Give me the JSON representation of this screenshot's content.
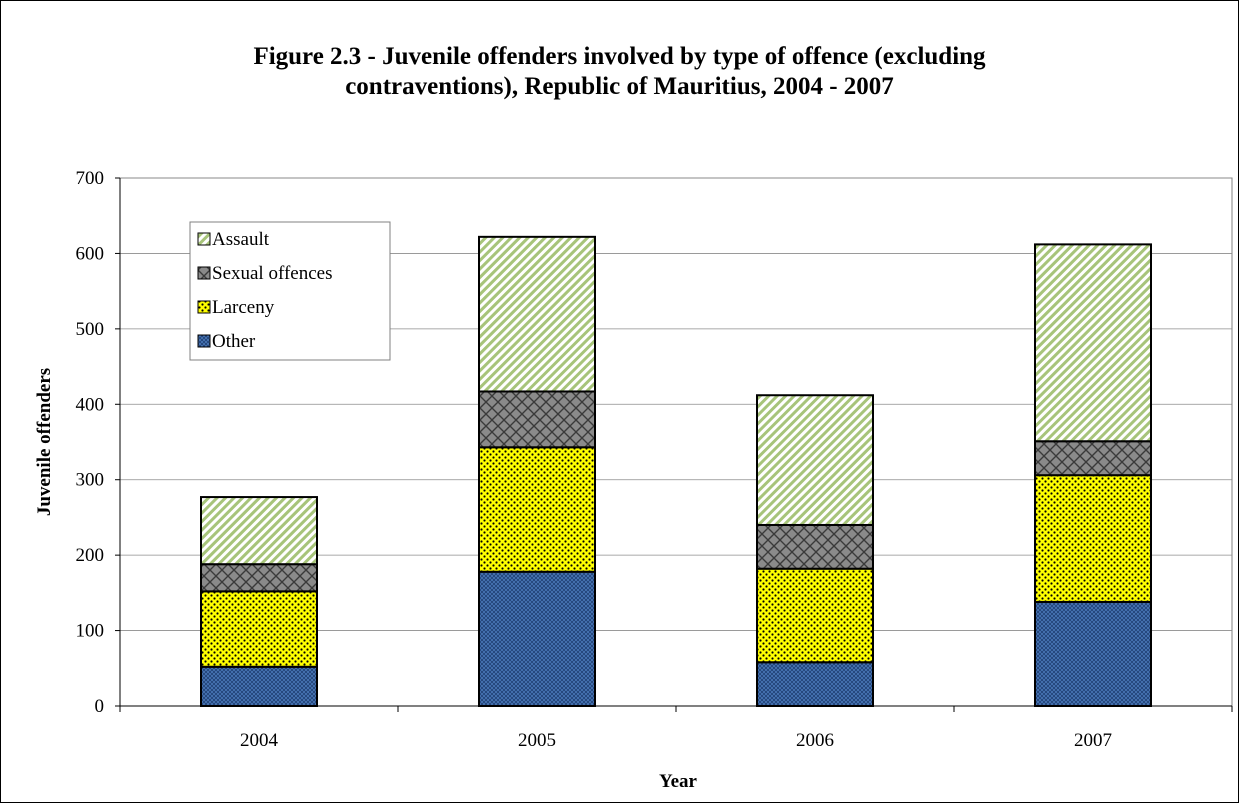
{
  "chart_data": {
    "type": "bar",
    "stacked": true,
    "title_line1": "Figure 2.3 - Juvenile offenders involved by type of offence (excluding",
    "title_line2": "contraventions), Republic of Mauritius, 2004 - 2007",
    "xlabel": "Year",
    "ylabel": "Juvenile offenders",
    "categories": [
      "2004",
      "2005",
      "2006",
      "2007"
    ],
    "ylim": [
      0,
      700
    ],
    "yticks": [
      0,
      100,
      200,
      300,
      400,
      500,
      600,
      700
    ],
    "grid": true,
    "legend_position": "top-left",
    "series": [
      {
        "name": "Other",
        "values": [
          52,
          178,
          58,
          138
        ],
        "color": "#1f3f73",
        "pattern": "crosshatch"
      },
      {
        "name": "Larceny",
        "values": [
          100,
          165,
          124,
          168
        ],
        "color": "#ffff00",
        "pattern": "dots"
      },
      {
        "name": "Sexual offences",
        "values": [
          36,
          74,
          58,
          45
        ],
        "color": "#6e6e6e",
        "pattern": "crosshatch"
      },
      {
        "name": "Assault",
        "values": [
          89,
          205,
          172,
          261
        ],
        "color": "#a7c47a",
        "pattern": "diagonal"
      }
    ]
  }
}
